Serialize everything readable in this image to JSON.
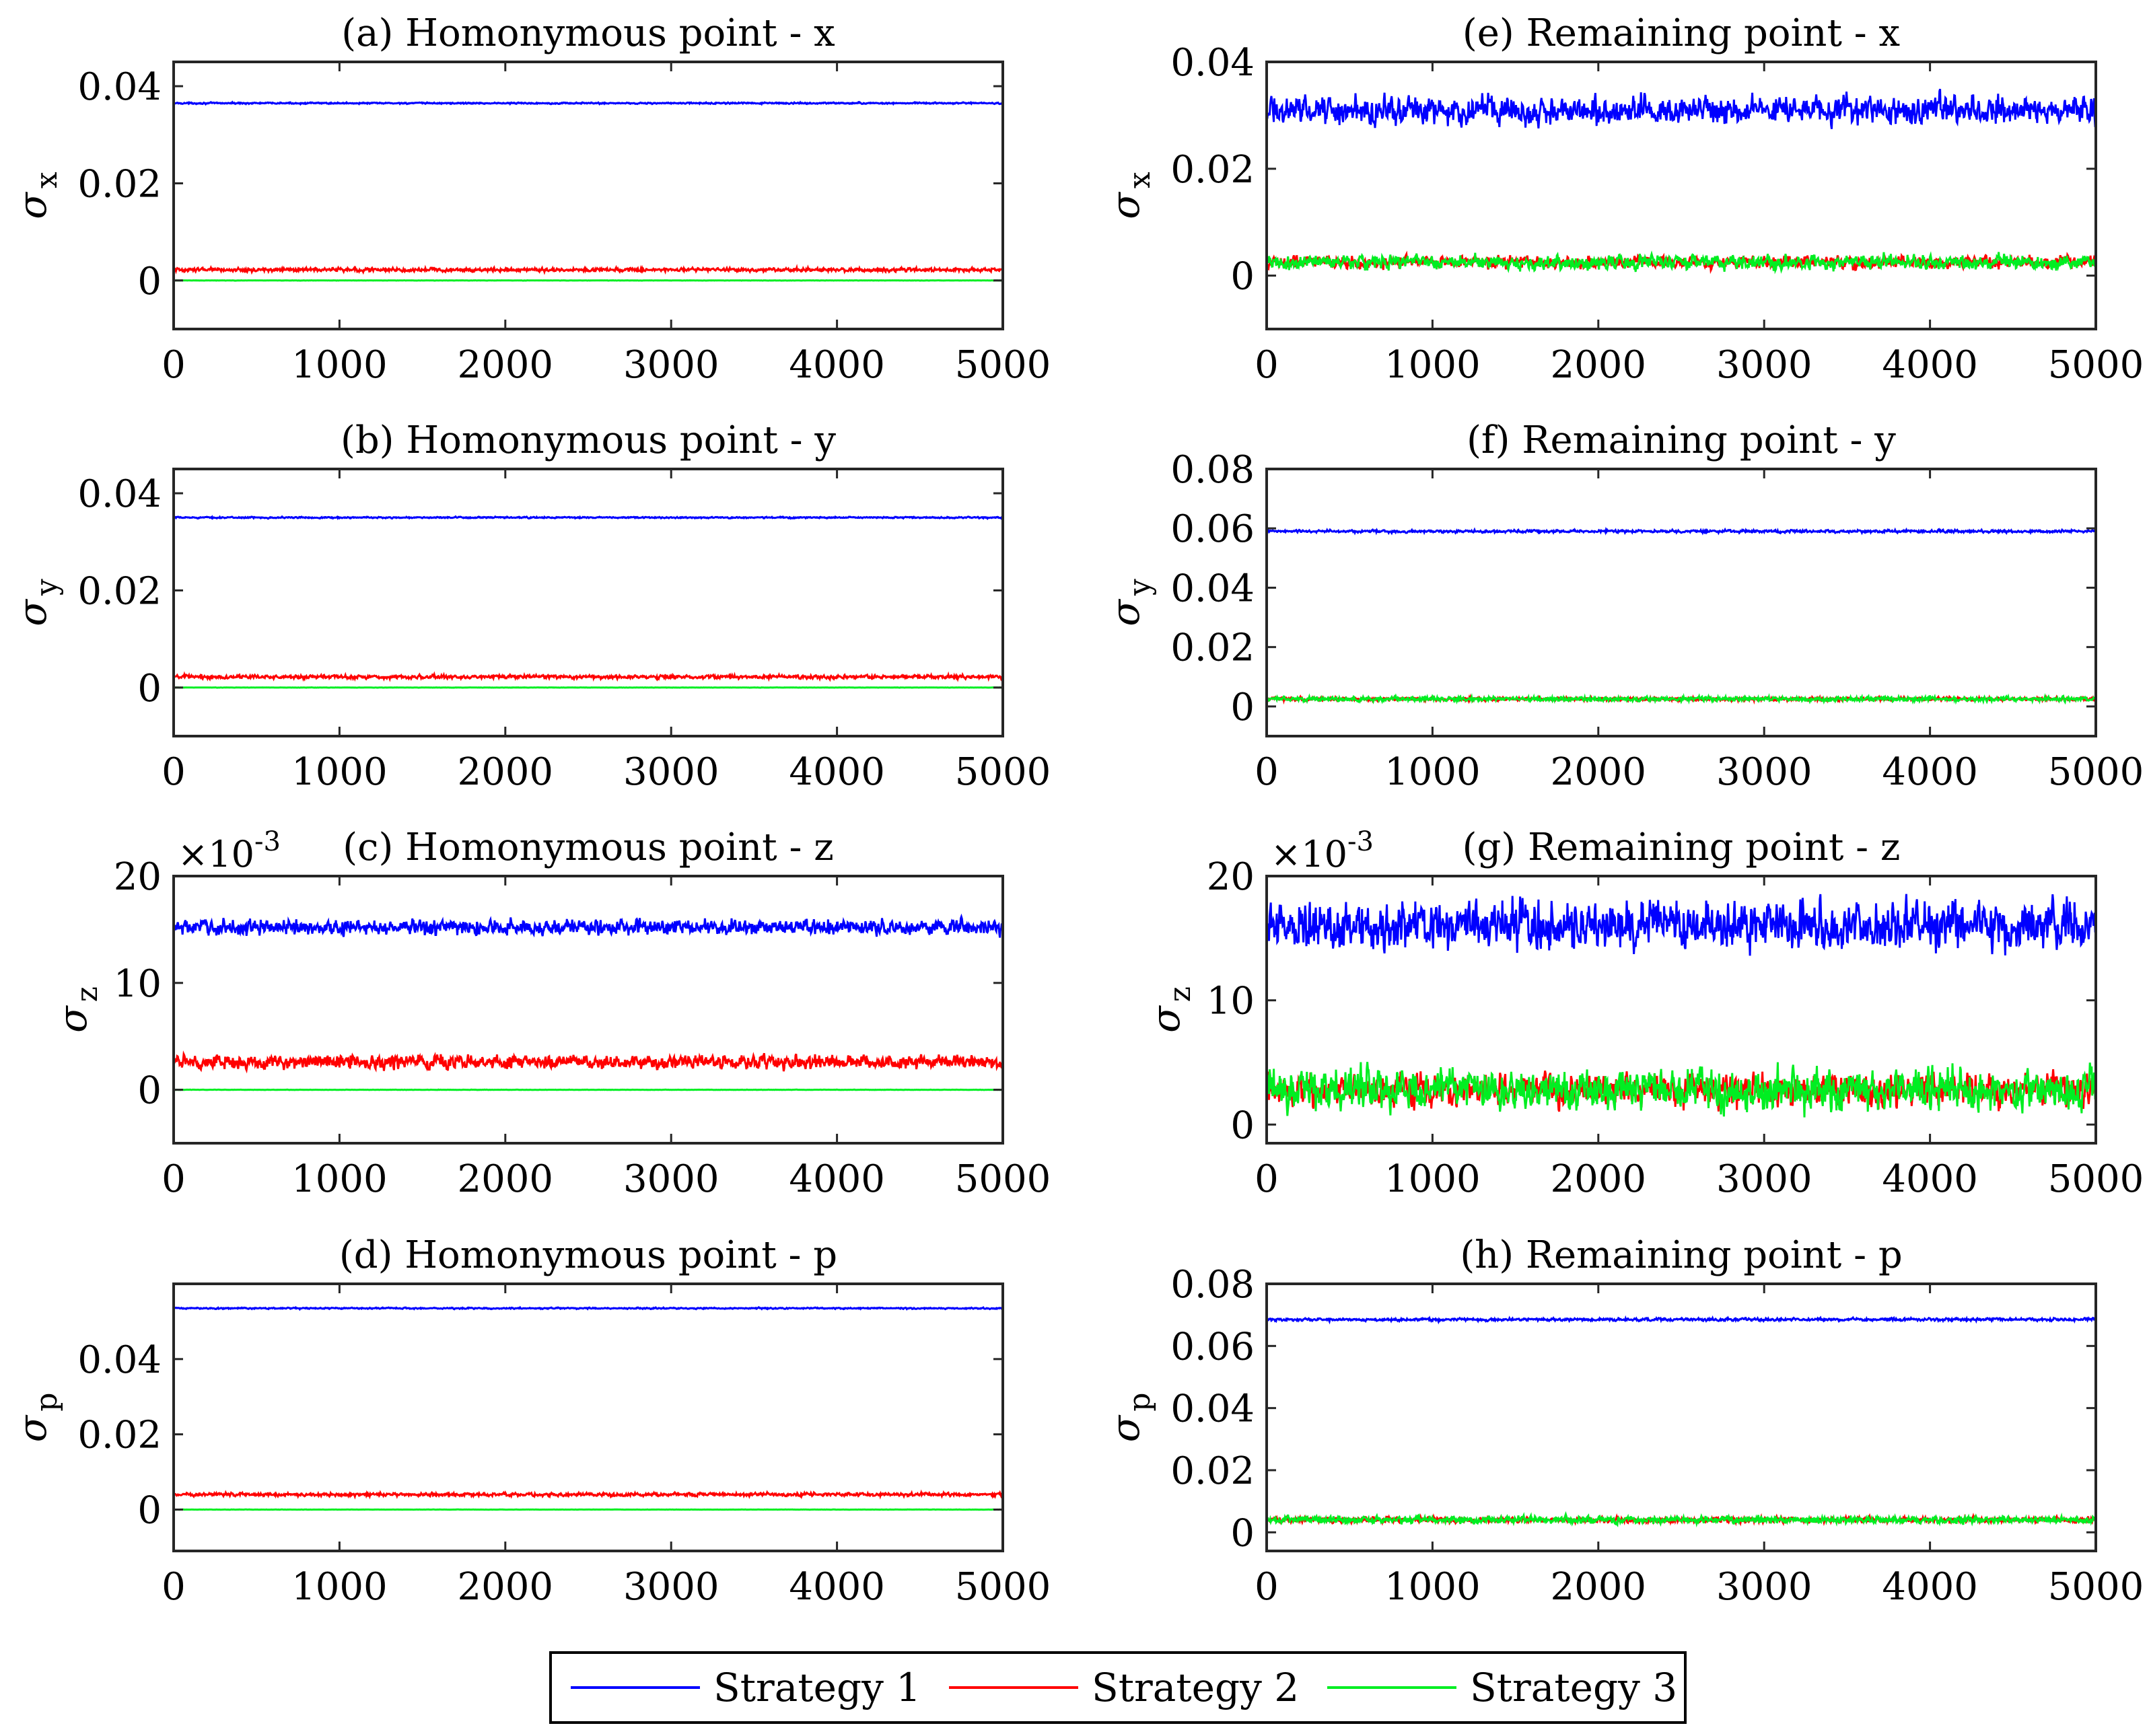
{
  "colors": {
    "s1": "#0000ff",
    "s2": "#ff0000",
    "s3": "#00ee22",
    "axis": "#262626"
  },
  "legend": {
    "items": [
      {
        "label": "Strategy 1",
        "color": "#0000ff"
      },
      {
        "label": "Strategy 2",
        "color": "#ff0000"
      },
      {
        "label": "Strategy 3",
        "color": "#00ee22"
      }
    ]
  },
  "chart_data": [
    {
      "id": "a",
      "type": "line",
      "title": "(a) Homonymous point - x",
      "xlabel": "",
      "ylabel_sym": "σ",
      "ylabel_sub": "x",
      "multiplier": "",
      "x": [
        0,
        5000
      ],
      "xlim": [
        0,
        5000
      ],
      "ylim": [
        -0.01,
        0.045
      ],
      "xticks": [
        0,
        1000,
        2000,
        3000,
        4000,
        5000
      ],
      "xtick_labels": [
        "0",
        "1000",
        "2000",
        "3000",
        "4000",
        "5000"
      ],
      "yticks": [
        0,
        0.02,
        0.04
      ],
      "ytick_labels": [
        "0",
        "0.02",
        "0.04"
      ],
      "series": [
        {
          "name": "Strategy 1",
          "mean": 0.0365,
          "noise": 0.0001
        },
        {
          "name": "Strategy 2",
          "mean": 0.0022,
          "noise": 0.00025
        },
        {
          "name": "Strategy 3",
          "mean": 0.0,
          "noise": 2e-05
        }
      ]
    },
    {
      "id": "b",
      "type": "line",
      "title": "(b) Homonymous point - y",
      "xlabel": "",
      "ylabel_sym": "σ",
      "ylabel_sub": "y",
      "multiplier": "",
      "x": [
        0,
        5000
      ],
      "xlim": [
        0,
        5000
      ],
      "ylim": [
        -0.01,
        0.045
      ],
      "xticks": [
        0,
        1000,
        2000,
        3000,
        4000,
        5000
      ],
      "xtick_labels": [
        "0",
        "1000",
        "2000",
        "3000",
        "4000",
        "5000"
      ],
      "yticks": [
        0,
        0.02,
        0.04
      ],
      "ytick_labels": [
        "0",
        "0.02",
        "0.04"
      ],
      "series": [
        {
          "name": "Strategy 1",
          "mean": 0.035,
          "noise": 0.0001
        },
        {
          "name": "Strategy 2",
          "mean": 0.0022,
          "noise": 0.00025
        },
        {
          "name": "Strategy 3",
          "mean": 0.0,
          "noise": 2e-05
        }
      ]
    },
    {
      "id": "c",
      "type": "line",
      "title": "(c) Homonymous point - z",
      "xlabel": "",
      "ylabel_sym": "σ",
      "ylabel_sub": "z",
      "multiplier": "×10",
      "multiplier_exp": "-3",
      "x": [
        0,
        5000
      ],
      "xlim": [
        0,
        5000
      ],
      "ylim": [
        -5,
        20
      ],
      "xticks": [
        0,
        1000,
        2000,
        3000,
        4000,
        5000
      ],
      "xtick_labels": [
        "0",
        "1000",
        "2000",
        "3000",
        "4000",
        "5000"
      ],
      "yticks": [
        0,
        10,
        20
      ],
      "ytick_labels": [
        "0",
        "10",
        "20"
      ],
      "series": [
        {
          "name": "Strategy 1",
          "mean": 15.2,
          "noise": 0.5
        },
        {
          "name": "Strategy 2",
          "mean": 2.6,
          "noise": 0.45
        },
        {
          "name": "Strategy 3",
          "mean": 0.0,
          "noise": 0.01
        }
      ]
    },
    {
      "id": "d",
      "type": "line",
      "title": "(d) Homonymous point - p",
      "xlabel": "",
      "ylabel_sym": "σ",
      "ylabel_sub": "p",
      "multiplier": "",
      "x": [
        0,
        5000
      ],
      "xlim": [
        0,
        5000
      ],
      "ylim": [
        -0.011,
        0.06
      ],
      "xticks": [
        0,
        1000,
        2000,
        3000,
        4000,
        5000
      ],
      "xtick_labels": [
        "0",
        "1000",
        "2000",
        "3000",
        "4000",
        "5000"
      ],
      "yticks": [
        0,
        0.02,
        0.04
      ],
      "ytick_labels": [
        "0",
        "0.02",
        "0.04"
      ],
      "series": [
        {
          "name": "Strategy 1",
          "mean": 0.0535,
          "noise": 0.00012
        },
        {
          "name": "Strategy 2",
          "mean": 0.004,
          "noise": 0.0003
        },
        {
          "name": "Strategy 3",
          "mean": 0.0,
          "noise": 2e-05
        }
      ]
    },
    {
      "id": "e",
      "type": "line",
      "title": "(e) Remaining point - x",
      "xlabel": "",
      "ylabel_sym": "σ",
      "ylabel_sub": "x",
      "multiplier": "",
      "x": [
        0,
        5000
      ],
      "xlim": [
        0,
        5000
      ],
      "ylim": [
        -0.01,
        0.04
      ],
      "xticks": [
        0,
        1000,
        2000,
        3000,
        4000,
        5000
      ],
      "xtick_labels": [
        "0",
        "1000",
        "2000",
        "3000",
        "4000",
        "5000"
      ],
      "yticks": [
        0,
        0.02,
        0.04
      ],
      "ytick_labels": [
        "0",
        "0.02",
        "0.04"
      ],
      "series": [
        {
          "name": "Strategy 1",
          "mean": 0.031,
          "noise": 0.0018
        },
        {
          "name": "Strategy 2",
          "mean": 0.0025,
          "noise": 0.0008
        },
        {
          "name": "Strategy 3",
          "mean": 0.0025,
          "noise": 0.0009
        }
      ]
    },
    {
      "id": "f",
      "type": "line",
      "title": "(f) Remaining point - y",
      "xlabel": "",
      "ylabel_sym": "σ",
      "ylabel_sub": "y",
      "multiplier": "",
      "x": [
        0,
        5000
      ],
      "xlim": [
        0,
        5000
      ],
      "ylim": [
        -0.01,
        0.08
      ],
      "xticks": [
        0,
        1000,
        2000,
        3000,
        4000,
        5000
      ],
      "xtick_labels": [
        "0",
        "1000",
        "2000",
        "3000",
        "4000",
        "5000"
      ],
      "yticks": [
        0,
        0.02,
        0.04,
        0.06,
        0.08
      ],
      "ytick_labels": [
        "0",
        "0.02",
        "0.04",
        "0.06",
        "0.08"
      ],
      "series": [
        {
          "name": "Strategy 1",
          "mean": 0.059,
          "noise": 0.0003
        },
        {
          "name": "Strategy 2",
          "mean": 0.0025,
          "noise": 0.0004
        },
        {
          "name": "Strategy 3",
          "mean": 0.0025,
          "noise": 0.0005
        }
      ]
    },
    {
      "id": "g",
      "type": "line",
      "title": "(g) Remaining point - z",
      "xlabel": "",
      "ylabel_sym": "σ",
      "ylabel_sub": "z",
      "multiplier": "×10",
      "multiplier_exp": "-3",
      "x": [
        0,
        5000
      ],
      "xlim": [
        0,
        5000
      ],
      "ylim": [
        -1.5,
        20
      ],
      "xticks": [
        0,
        1000,
        2000,
        3000,
        4000,
        5000
      ],
      "xtick_labels": [
        "0",
        "1000",
        "2000",
        "3000",
        "4000",
        "5000"
      ],
      "yticks": [
        0,
        10,
        20
      ],
      "ytick_labels": [
        "0",
        "10",
        "20"
      ],
      "series": [
        {
          "name": "Strategy 1",
          "mean": 16.0,
          "noise": 1.3
        },
        {
          "name": "Strategy 2",
          "mean": 2.8,
          "noise": 0.9
        },
        {
          "name": "Strategy 3",
          "mean": 2.8,
          "noise": 1.1
        }
      ]
    },
    {
      "id": "h",
      "type": "line",
      "title": "(h) Remaining point - p",
      "xlabel": "",
      "ylabel_sym": "σ",
      "ylabel_sub": "p",
      "multiplier": "",
      "x": [
        0,
        5000
      ],
      "xlim": [
        0,
        5000
      ],
      "ylim": [
        -0.006,
        0.08
      ],
      "xticks": [
        0,
        1000,
        2000,
        3000,
        4000,
        5000
      ],
      "xtick_labels": [
        "0",
        "1000",
        "2000",
        "3000",
        "4000",
        "5000"
      ],
      "yticks": [
        0,
        0.02,
        0.04,
        0.06,
        0.08
      ],
      "ytick_labels": [
        "0",
        "0.02",
        "0.04",
        "0.06",
        "0.08"
      ],
      "series": [
        {
          "name": "Strategy 1",
          "mean": 0.0685,
          "noise": 0.0003
        },
        {
          "name": "Strategy 2",
          "mean": 0.004,
          "noise": 0.0006
        },
        {
          "name": "Strategy 3",
          "mean": 0.004,
          "noise": 0.0008
        }
      ]
    }
  ]
}
